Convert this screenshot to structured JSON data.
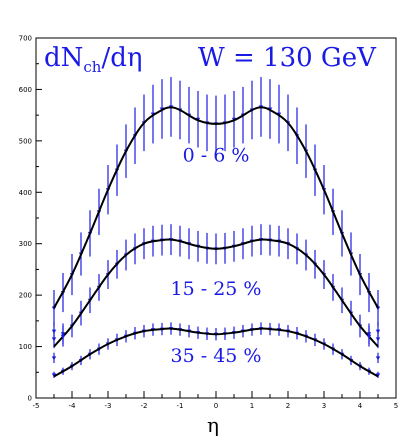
{
  "chart_data": {
    "type": "line",
    "title": "dN_ch/dη",
    "title_parts": {
      "main": "dN",
      "sub": "ch",
      "rest": "/dη"
    },
    "energy_label": "W = 130 GeV",
    "xlabel": "η",
    "ylabel": "",
    "xlim": [
      -5,
      5
    ],
    "ylim": [
      0,
      700
    ],
    "x_ticks": [
      -5,
      -4,
      -3,
      -2,
      -1,
      0,
      1,
      2,
      3,
      4,
      5
    ],
    "y_ticks": [
      0,
      100,
      200,
      300,
      400,
      500,
      600,
      700
    ],
    "grid": false,
    "colors": {
      "curve": "#000000",
      "data": "#1a1ae6",
      "label": "#1a1ae6"
    },
    "series": [
      {
        "label": "0 - 6 %",
        "fit": [
          [
            -4.5,
            175
          ],
          [
            -4.0,
            240
          ],
          [
            -3.5,
            320
          ],
          [
            -3.0,
            405
          ],
          [
            -2.5,
            480
          ],
          [
            -2.0,
            535
          ],
          [
            -1.5,
            560
          ],
          [
            -1.25,
            565
          ],
          [
            -1.0,
            560
          ],
          [
            -0.5,
            540
          ],
          [
            0.0,
            533
          ],
          [
            0.5,
            540
          ],
          [
            1.0,
            560
          ],
          [
            1.25,
            565
          ],
          [
            1.5,
            560
          ],
          [
            2.0,
            535
          ],
          [
            2.5,
            480
          ],
          [
            3.0,
            405
          ],
          [
            3.5,
            320
          ],
          [
            4.0,
            240
          ],
          [
            4.5,
            175
          ]
        ],
        "points": [
          [
            -4.5,
            175,
            35
          ],
          [
            -4.25,
            205,
            38
          ],
          [
            -4.0,
            240,
            40
          ],
          [
            -3.75,
            280,
            42
          ],
          [
            -3.5,
            320,
            45
          ],
          [
            -3.25,
            362,
            45
          ],
          [
            -3.0,
            405,
            48
          ],
          [
            -2.75,
            443,
            50
          ],
          [
            -2.5,
            480,
            52
          ],
          [
            -2.25,
            510,
            55
          ],
          [
            -2.0,
            535,
            55
          ],
          [
            -1.75,
            552,
            57
          ],
          [
            -1.5,
            562,
            58
          ],
          [
            -1.25,
            566,
            58
          ],
          [
            -1.0,
            560,
            57
          ],
          [
            -0.75,
            550,
            55
          ],
          [
            -0.5,
            542,
            55
          ],
          [
            -0.25,
            535,
            55
          ],
          [
            0.0,
            533,
            55
          ],
          [
            0.25,
            535,
            55
          ],
          [
            0.5,
            542,
            55
          ],
          [
            0.75,
            550,
            55
          ],
          [
            1.0,
            560,
            57
          ],
          [
            1.25,
            566,
            58
          ],
          [
            1.5,
            562,
            58
          ],
          [
            1.75,
            552,
            57
          ],
          [
            2.0,
            535,
            55
          ],
          [
            2.25,
            510,
            55
          ],
          [
            2.5,
            480,
            52
          ],
          [
            2.75,
            443,
            50
          ],
          [
            3.0,
            405,
            48
          ],
          [
            3.25,
            362,
            45
          ],
          [
            3.5,
            320,
            45
          ],
          [
            3.75,
            280,
            42
          ],
          [
            4.0,
            240,
            40
          ],
          [
            4.25,
            205,
            38
          ],
          [
            4.5,
            175,
            35
          ]
        ]
      },
      {
        "label": "15 - 25 %",
        "fit": [
          [
            -4.5,
            100
          ],
          [
            -4.0,
            140
          ],
          [
            -3.5,
            190
          ],
          [
            -3.0,
            240
          ],
          [
            -2.5,
            278
          ],
          [
            -2.0,
            300
          ],
          [
            -1.5,
            307
          ],
          [
            -1.25,
            308
          ],
          [
            -1.0,
            305
          ],
          [
            -0.5,
            295
          ],
          [
            0.0,
            290
          ],
          [
            0.5,
            295
          ],
          [
            1.0,
            305
          ],
          [
            1.25,
            308
          ],
          [
            1.5,
            307
          ],
          [
            2.0,
            300
          ],
          [
            2.5,
            278
          ],
          [
            3.0,
            240
          ],
          [
            3.5,
            190
          ],
          [
            4.0,
            140
          ],
          [
            4.5,
            100
          ]
        ],
        "points": [
          [
            -4.5,
            115,
            18
          ],
          [
            -4.25,
            125,
            20
          ],
          [
            -4.0,
            140,
            22
          ],
          [
            -3.75,
            165,
            24
          ],
          [
            -3.5,
            190,
            25
          ],
          [
            -3.25,
            215,
            26
          ],
          [
            -3.0,
            240,
            28
          ],
          [
            -2.75,
            260,
            28
          ],
          [
            -2.5,
            278,
            30
          ],
          [
            -2.25,
            290,
            30
          ],
          [
            -2.0,
            300,
            30
          ],
          [
            -1.75,
            305,
            30
          ],
          [
            -1.5,
            307,
            30
          ],
          [
            -1.25,
            308,
            30
          ],
          [
            -1.0,
            305,
            30
          ],
          [
            -0.75,
            300,
            30
          ],
          [
            -0.5,
            295,
            30
          ],
          [
            -0.25,
            291,
            30
          ],
          [
            0.0,
            290,
            30
          ],
          [
            0.25,
            291,
            30
          ],
          [
            0.5,
            295,
            30
          ],
          [
            0.75,
            300,
            30
          ],
          [
            1.0,
            305,
            30
          ],
          [
            1.25,
            308,
            30
          ],
          [
            1.5,
            307,
            30
          ],
          [
            1.75,
            305,
            30
          ],
          [
            2.0,
            300,
            30
          ],
          [
            2.25,
            290,
            30
          ],
          [
            2.5,
            278,
            30
          ],
          [
            2.75,
            260,
            28
          ],
          [
            3.0,
            240,
            28
          ],
          [
            3.25,
            215,
            26
          ],
          [
            3.5,
            190,
            25
          ],
          [
            3.75,
            165,
            24
          ],
          [
            4.0,
            140,
            22
          ],
          [
            4.25,
            125,
            20
          ],
          [
            4.5,
            115,
            18
          ]
        ]
      },
      {
        "label": "35 - 45 %",
        "fit": [
          [
            -4.5,
            42
          ],
          [
            -4.0,
            62
          ],
          [
            -3.5,
            85
          ],
          [
            -3.0,
            105
          ],
          [
            -2.5,
            120
          ],
          [
            -2.0,
            130
          ],
          [
            -1.5,
            134
          ],
          [
            -1.25,
            135
          ],
          [
            -1.0,
            133
          ],
          [
            -0.5,
            127
          ],
          [
            0.0,
            124
          ],
          [
            0.5,
            127
          ],
          [
            1.0,
            133
          ],
          [
            1.25,
            135
          ],
          [
            1.5,
            134
          ],
          [
            2.0,
            130
          ],
          [
            2.5,
            120
          ],
          [
            3.0,
            105
          ],
          [
            3.5,
            85
          ],
          [
            4.0,
            62
          ],
          [
            4.5,
            42
          ]
        ],
        "points": [
          [
            -4.5,
            45,
            6
          ],
          [
            -4.25,
            52,
            7
          ],
          [
            -4.0,
            62,
            8
          ],
          [
            -3.75,
            73,
            9
          ],
          [
            -3.5,
            85,
            10
          ],
          [
            -3.25,
            95,
            11
          ],
          [
            -3.0,
            105,
            11
          ],
          [
            -2.75,
            113,
            12
          ],
          [
            -2.5,
            120,
            12
          ],
          [
            -2.25,
            126,
            12
          ],
          [
            -2.0,
            130,
            12
          ],
          [
            -1.75,
            133,
            12
          ],
          [
            -1.5,
            134,
            12
          ],
          [
            -1.25,
            135,
            12
          ],
          [
            -1.0,
            133,
            12
          ],
          [
            -0.75,
            130,
            12
          ],
          [
            -0.5,
            127,
            12
          ],
          [
            -0.25,
            125,
            12
          ],
          [
            0.0,
            124,
            12
          ],
          [
            0.25,
            125,
            12
          ],
          [
            0.5,
            127,
            12
          ],
          [
            0.75,
            130,
            12
          ],
          [
            1.0,
            133,
            12
          ],
          [
            1.25,
            135,
            12
          ],
          [
            1.5,
            134,
            12
          ],
          [
            1.75,
            133,
            12
          ],
          [
            2.0,
            130,
            12
          ],
          [
            2.25,
            126,
            12
          ],
          [
            2.5,
            120,
            12
          ],
          [
            2.75,
            113,
            12
          ],
          [
            3.0,
            105,
            11
          ],
          [
            3.25,
            95,
            11
          ],
          [
            3.5,
            85,
            10
          ],
          [
            3.75,
            73,
            9
          ],
          [
            4.0,
            62,
            8
          ],
          [
            4.25,
            52,
            7
          ],
          [
            4.5,
            45,
            6
          ]
        ]
      }
    ],
    "outliers": [
      [
        -4.5,
        130,
        18
      ],
      [
        -4.25,
        120,
        20
      ],
      [
        4.25,
        120,
        20
      ],
      [
        4.5,
        130,
        18
      ],
      [
        -4.5,
        78,
        10
      ],
      [
        4.5,
        78,
        10
      ]
    ]
  }
}
